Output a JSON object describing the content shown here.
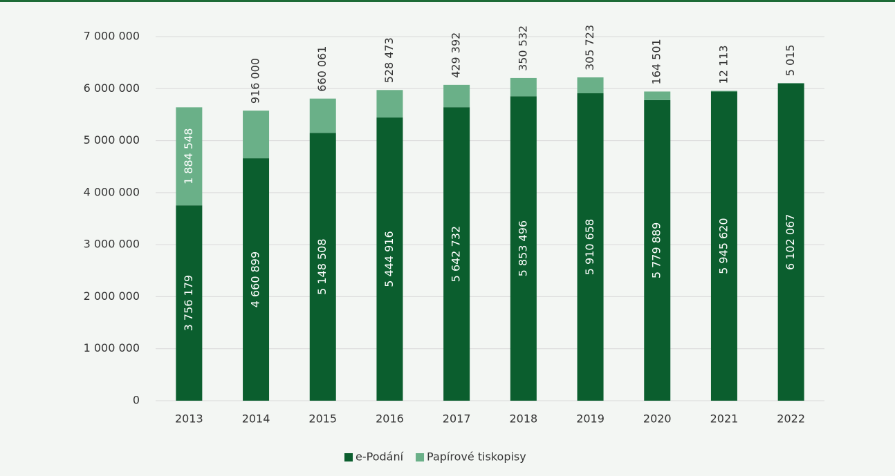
{
  "chart_data": {
    "type": "stacked_bar",
    "categories": [
      "2013",
      "2014",
      "2015",
      "2016",
      "2017",
      "2018",
      "2019",
      "2020",
      "2021",
      "2022"
    ],
    "series": [
      {
        "name": "e-Podání",
        "color": "#0b5e2e",
        "values": [
          3756179,
          4660899,
          5148508,
          5444916,
          5642732,
          5853496,
          5910658,
          5779889,
          5945620,
          6102067
        ],
        "value_labels": [
          "3 756 179",
          "4 660 899",
          "5 148 508",
          "5 444 916",
          "5 642 732",
          "5 853 496",
          "5 910 658",
          "5 779 889",
          "5 945 620",
          "6 102 067"
        ]
      },
      {
        "name": "Papírové tiskopisy",
        "color": "#6ab088",
        "values": [
          1884548,
          916000,
          660061,
          528473,
          429392,
          350532,
          305723,
          164501,
          12113,
          5015
        ],
        "value_labels": [
          "1 884 548",
          "916 000",
          "660 061",
          "528 473",
          "429 392",
          "350 532",
          "305 723",
          "164 501",
          "12 113",
          "5 015"
        ]
      }
    ],
    "ylim": [
      0,
      7000000
    ],
    "yticks": [
      0,
      {
        "value": 1000000,
        "label": "1 000 000"
      },
      {
        "value": 2000000,
        "label": "2 000 000"
      },
      {
        "value": 3000000,
        "label": "3 000 000"
      },
      {
        "value": 4000000,
        "label": "4 000 000"
      },
      {
        "value": 5000000,
        "label": "5 000 000"
      },
      {
        "value": 6000000,
        "label": "6 000 000"
      },
      {
        "value": 7000000,
        "label": "7 000 000"
      }
    ],
    "grid": true,
    "legend": "bottom"
  }
}
